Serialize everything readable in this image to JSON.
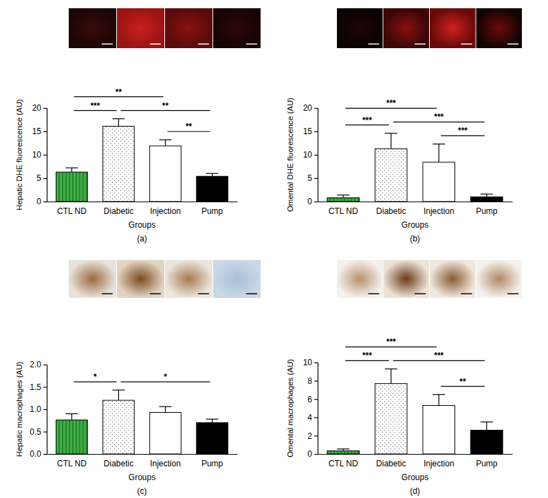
{
  "chart_data": [
    {
      "type": "bar",
      "title": "(a)",
      "x_label": "Groups",
      "y_label": "Hepatic DHE fluorescence (AU)",
      "categories": [
        "CTL ND",
        "Diabetic",
        "Injection",
        "Pump"
      ],
      "values": [
        6.3,
        16.1,
        11.9,
        5.4
      ],
      "errors": [
        0.9,
        1.6,
        1.3,
        0.6
      ],
      "colors": [
        "#3cb043",
        "#ffffff",
        "#ffffff",
        "#000000"
      ],
      "ylim": [
        0,
        20
      ],
      "yticks": [
        0,
        5,
        10,
        15,
        20
      ],
      "brackets": [
        {
          "from": 2,
          "to": 3,
          "label": "**"
        },
        {
          "from": 0,
          "to": 1,
          "label": "***"
        },
        {
          "from": 1,
          "to": 3,
          "label": "**"
        },
        {
          "from": 0,
          "to": 2,
          "label": "**"
        }
      ]
    },
    {
      "type": "bar",
      "title": "(b)",
      "x_label": "Groups",
      "y_label": "Omental DHE fluorescence (AU)",
      "categories": [
        "CTL ND",
        "Diabetic",
        "Injection",
        "Pump"
      ],
      "values": [
        0.8,
        11.3,
        8.4,
        1.0
      ],
      "errors": [
        0.6,
        3.3,
        3.9,
        0.6
      ],
      "colors": [
        "#3cb043",
        "#ffffff",
        "#ffffff",
        "#000000"
      ],
      "ylim": [
        0,
        20
      ],
      "yticks": [
        0,
        5,
        10,
        15,
        20
      ],
      "brackets": [
        {
          "from": 2,
          "to": 3,
          "label": "***"
        },
        {
          "from": 0,
          "to": 1,
          "label": "***"
        },
        {
          "from": 1,
          "to": 3,
          "label": "***"
        },
        {
          "from": 0,
          "to": 2,
          "label": "***"
        }
      ]
    },
    {
      "type": "bar",
      "title": "(c)",
      "x_label": "Groups",
      "y_label": "Hepatic macrophages (AU)",
      "categories": [
        "CTL ND",
        "Diabetic",
        "Injection",
        "Pump"
      ],
      "values": [
        0.76,
        1.2,
        0.93,
        0.7
      ],
      "errors": [
        0.14,
        0.23,
        0.13,
        0.08
      ],
      "colors": [
        "#3cb043",
        "#ffffff",
        "#ffffff",
        "#000000"
      ],
      "ylim": [
        0,
        2
      ],
      "yticks": [
        {
          "value": 0,
          "label": "0.0"
        },
        {
          "value": 0.5,
          "label": "0.5"
        },
        {
          "value": 1,
          "label": "1.0"
        },
        {
          "value": 1.5,
          "label": "1.5"
        },
        {
          "value": 2,
          "label": "2.0"
        }
      ],
      "brackets": [
        {
          "from": 1,
          "to": 3,
          "label": "*"
        },
        {
          "from": 0,
          "to": 1,
          "label": "*"
        }
      ]
    },
    {
      "type": "bar",
      "title": "(d)",
      "x_label": "Groups",
      "y_label": "Omental macrophages (AU)",
      "categories": [
        "CTL ND",
        "Diabetic",
        "Injection",
        "Pump"
      ],
      "values": [
        0.35,
        7.7,
        5.3,
        2.6
      ],
      "errors": [
        0.2,
        1.6,
        1.2,
        0.9
      ],
      "colors": [
        "#3cb043",
        "#ffffff",
        "#ffffff",
        "#000000"
      ],
      "ylim": [
        0,
        10
      ],
      "yticks": [
        0,
        2,
        4,
        6,
        8,
        10
      ],
      "brackets": [
        {
          "from": 2,
          "to": 3,
          "label": "**"
        },
        {
          "from": 0,
          "to": 1,
          "label": "***"
        },
        {
          "from": 1,
          "to": 3,
          "label": "***"
        },
        {
          "from": 0,
          "to": 2,
          "label": "***"
        }
      ]
    }
  ]
}
